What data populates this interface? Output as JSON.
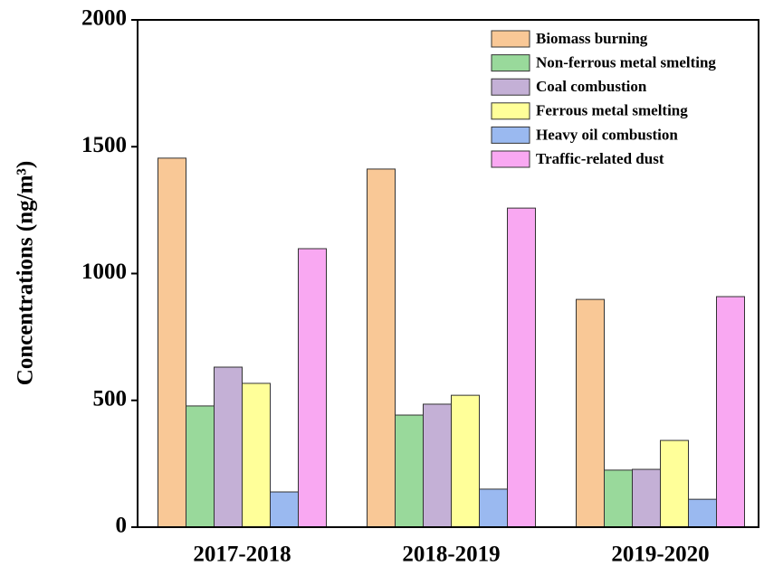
{
  "chart_data": {
    "type": "bar",
    "y_label": "Concentrations (ng/m³)",
    "categories": [
      "2017-2018",
      "2018-2019",
      "2019-2020"
    ],
    "series": [
      {
        "name": "Biomass burning",
        "color": "#f9c896",
        "values": [
          1455,
          1412,
          898
        ]
      },
      {
        "name": "Non-ferrous metal smelting",
        "color": "#99d99b",
        "values": [
          478,
          442,
          225
        ]
      },
      {
        "name": "Coal combustion",
        "color": "#c4b0d6",
        "values": [
          631,
          485,
          228
        ]
      },
      {
        "name": "Ferrous metal smelting",
        "color": "#ffff99",
        "values": [
          567,
          520,
          342
        ]
      },
      {
        "name": "Heavy oil combustion",
        "color": "#9ab9f0",
        "values": [
          139,
          150,
          110
        ]
      },
      {
        "name": "Traffic-related dust",
        "color": "#f9a8f2",
        "values": [
          1098,
          1258,
          909
        ]
      }
    ],
    "ylim": [
      0,
      2000
    ],
    "yticks": [
      0,
      500,
      1000,
      1500,
      2000
    ],
    "grid": false,
    "legend": "upper right"
  }
}
